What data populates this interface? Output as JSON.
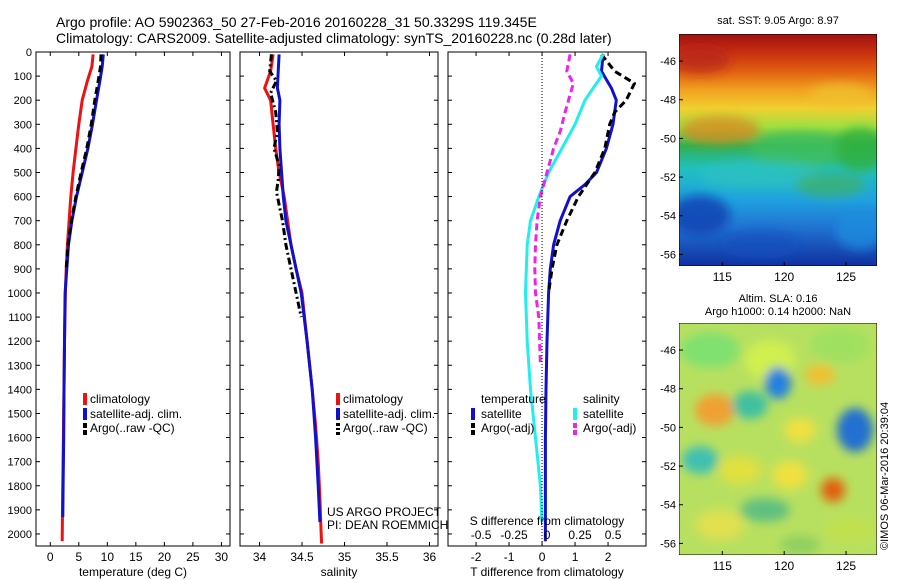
{
  "header": {
    "line1": "Argo profile: AO 5902363_50 27-Feb-2016 20160228_31 50.3329S 119.345E",
    "line2": "Climatology: CARS2009. Satellite-adjusted climatology: synTS_20160228.nc (0.28d later)"
  },
  "colors": {
    "red": "#ee1111",
    "blue": "#1111cc",
    "black": "#000000",
    "cyan": "#22eeee",
    "magenta": "#ee22ee"
  },
  "chart_data": [
    {
      "type": "line",
      "name": "temperature",
      "xlabel": "temperature (deg C)",
      "xlim": [
        -2.5,
        31.5
      ],
      "ylim": [
        0,
        2050
      ],
      "xticks": [
        0,
        5,
        10,
        15,
        20,
        25,
        30
      ],
      "yticks": [
        0,
        100,
        200,
        300,
        400,
        500,
        600,
        700,
        800,
        900,
        1000,
        1100,
        1200,
        1300,
        1400,
        1500,
        1600,
        1700,
        1800,
        1900,
        2000
      ],
      "legend": [
        "climatology",
        "satellite-adj. clim.",
        "Argo(..raw -QC)"
      ],
      "series": [
        {
          "name": "climatology",
          "color": "red",
          "dash": "solid",
          "x": [
            7.5,
            7.3,
            6.5,
            5.6,
            5.0,
            4.5,
            4.0,
            3.6,
            3.3,
            3.0,
            2.8,
            2.65,
            2.5,
            2.4,
            2.35,
            2.3,
            2.25,
            2.2,
            2.15,
            2.1
          ],
          "y": [
            10,
            60,
            120,
            200,
            300,
            400,
            500,
            600,
            700,
            800,
            900,
            1000,
            1200,
            1400,
            1500,
            1600,
            1700,
            1800,
            1900,
            2030
          ]
        },
        {
          "name": "satellite-adj. clim.",
          "color": "blue",
          "dash": "solid",
          "x": [
            9.3,
            9.1,
            8.7,
            8.1,
            7.4,
            6.6,
            5.6,
            4.6,
            3.8,
            3.2,
            2.9,
            2.6,
            2.5,
            2.4,
            2.35,
            2.3,
            2.25,
            2.2
          ],
          "y": [
            10,
            60,
            120,
            200,
            300,
            400,
            500,
            600,
            700,
            800,
            900,
            1000,
            1200,
            1400,
            1600,
            1700,
            1800,
            1930
          ]
        },
        {
          "name": "Argo(..raw -QC)",
          "color": "black",
          "dash": "dash",
          "x": [
            8.9,
            8.8,
            8.4,
            7.8,
            7.2,
            6.4,
            5.4,
            4.5,
            3.7,
            3.1,
            2.8
          ],
          "y": [
            10,
            60,
            120,
            200,
            300,
            400,
            500,
            600,
            700,
            800,
            900
          ]
        }
      ]
    },
    {
      "type": "line",
      "name": "salinity",
      "xlabel": "salinity",
      "xlim": [
        33.77,
        36.1
      ],
      "ylim": [
        0,
        2050
      ],
      "xticks": [
        34,
        34.5,
        35,
        35.5,
        36
      ],
      "legend": [
        "climatology",
        "satellite-adj. clim.",
        "Argo(..raw -QC)"
      ],
      "footnote1": "US ARGO PROJECT",
      "footnote2": "PI: DEAN ROEMMICH",
      "series": [
        {
          "name": "climatology",
          "color": "red",
          "dash": "solid",
          "x": [
            34.16,
            34.13,
            34.06,
            34.13,
            34.16,
            34.19,
            34.23,
            34.29,
            34.33,
            34.37,
            34.43,
            34.5,
            34.56,
            34.62,
            34.66,
            34.69,
            34.71,
            34.72,
            34.73
          ],
          "y": [
            10,
            80,
            150,
            200,
            300,
            400,
            500,
            600,
            700,
            800,
            900,
            1000,
            1200,
            1400,
            1550,
            1700,
            1850,
            1950,
            2040
          ]
        },
        {
          "name": "satellite-adj. clim.",
          "color": "blue",
          "dash": "solid",
          "x": [
            34.23,
            34.22,
            34.21,
            34.24,
            34.23,
            34.24,
            34.26,
            34.28,
            34.31,
            34.37,
            34.43,
            34.49,
            34.56,
            34.62,
            34.66,
            34.69,
            34.71
          ],
          "y": [
            10,
            80,
            150,
            200,
            300,
            400,
            500,
            600,
            700,
            800,
            900,
            1000,
            1200,
            1400,
            1600,
            1800,
            1950
          ]
        },
        {
          "name": "Argo(..raw -QC)",
          "color": "black",
          "dash": "dashdot",
          "x": [
            34.14,
            34.12,
            34.2,
            34.13,
            34.19,
            34.21,
            34.17,
            34.23,
            34.22,
            34.2,
            34.24,
            34.27,
            34.31,
            34.37,
            34.43,
            34.49
          ],
          "y": [
            10,
            80,
            120,
            170,
            250,
            330,
            400,
            470,
            530,
            580,
            650,
            700,
            800,
            900,
            1000,
            1100
          ]
        }
      ]
    },
    {
      "type": "line",
      "name": "difference",
      "xlabel": "T difference from climatology",
      "xlabel_top": "S difference from climatology",
      "xlim": [
        -2.85,
        3.15
      ],
      "ylim": [
        0,
        2050
      ],
      "xticks": [
        -2,
        -1,
        0,
        1,
        2
      ],
      "xticks_s_labels": [
        "-0.5",
        "-0.25",
        "0",
        "0.25",
        "0.5"
      ],
      "xticks_s_pos": [
        -2,
        -1,
        0,
        1,
        2
      ],
      "legend_title_t": "temperature",
      "legend_title_s": "salinity",
      "legend": [
        "satellite",
        "Argo(-adj)",
        "satellite",
        "Argo(-adj)"
      ],
      "series": [
        {
          "name": "T satellite",
          "color": "blue",
          "dash": "solid",
          "x": [
            1.85,
            1.8,
            2.1,
            2.25,
            2.15,
            1.95,
            1.65,
            1.3,
            0.85,
            0.55,
            0.35,
            0.25,
            0.2,
            0.15,
            0.12,
            0.1,
            0.1,
            0.1
          ],
          "y": [
            10,
            80,
            150,
            200,
            300,
            400,
            500,
            550,
            600,
            700,
            800,
            900,
            1000,
            1200,
            1400,
            1600,
            1800,
            2030
          ]
        },
        {
          "name": "T Argo(-adj)",
          "color": "black",
          "dash": "dash",
          "x": [
            1.8,
            2.2,
            2.8,
            2.55,
            2.2,
            2.05,
            1.9,
            1.6,
            1.1,
            0.75,
            0.45,
            0.3,
            0.2
          ],
          "y": [
            10,
            80,
            130,
            200,
            250,
            300,
            400,
            500,
            600,
            700,
            800,
            900,
            1000
          ]
        },
        {
          "name": "S satellite",
          "color": "cyan",
          "dash": "solid",
          "x": [
            1.85,
            1.65,
            1.8,
            1.55,
            1.3,
            1.0,
            0.6,
            0.2,
            -0.1,
            -0.35,
            -0.45,
            -0.5,
            -0.45,
            -0.35,
            -0.2,
            -0.05,
            0.0
          ],
          "y": [
            10,
            60,
            100,
            150,
            200,
            300,
            400,
            500,
            600,
            700,
            800,
            1000,
            1200,
            1400,
            1600,
            1800,
            1950
          ]
        },
        {
          "name": "S Argo(-adj)",
          "color": "magenta",
          "dash": "dash",
          "x": [
            0.85,
            0.75,
            0.95,
            0.8,
            0.7,
            0.55,
            0.35,
            0.15,
            -0.05,
            -0.15,
            -0.2,
            -0.22,
            -0.2,
            -0.1,
            -0.05
          ],
          "y": [
            10,
            80,
            130,
            200,
            250,
            330,
            400,
            500,
            600,
            700,
            800,
            900,
            1000,
            1100,
            1300
          ]
        }
      ]
    },
    {
      "type": "heatmap",
      "name": "sst",
      "title": "sat. SST: 9.05 Argo: 8.97",
      "xticks": [
        115,
        120,
        125
      ],
      "yticks": [
        -46,
        -48,
        -50,
        -52,
        -54,
        -56
      ],
      "xlim": [
        111.5,
        127.5
      ],
      "ylim": [
        -56.6,
        -44.6
      ],
      "colorscale": "jet"
    },
    {
      "type": "heatmap",
      "name": "sla",
      "title1": "Altim. SLA: 0.16",
      "title2": "Argo h1000: 0.14 h2000: NaN",
      "xticks": [
        115,
        120,
        125
      ],
      "yticks": [
        -46,
        -48,
        -50,
        -52,
        -54,
        -56
      ],
      "xlim": [
        111.5,
        127.5
      ],
      "ylim": [
        -56.6,
        -44.6
      ],
      "colorscale": "jet"
    }
  ],
  "watermark": "©IMOS 06-Mar-2016 20:39:04"
}
